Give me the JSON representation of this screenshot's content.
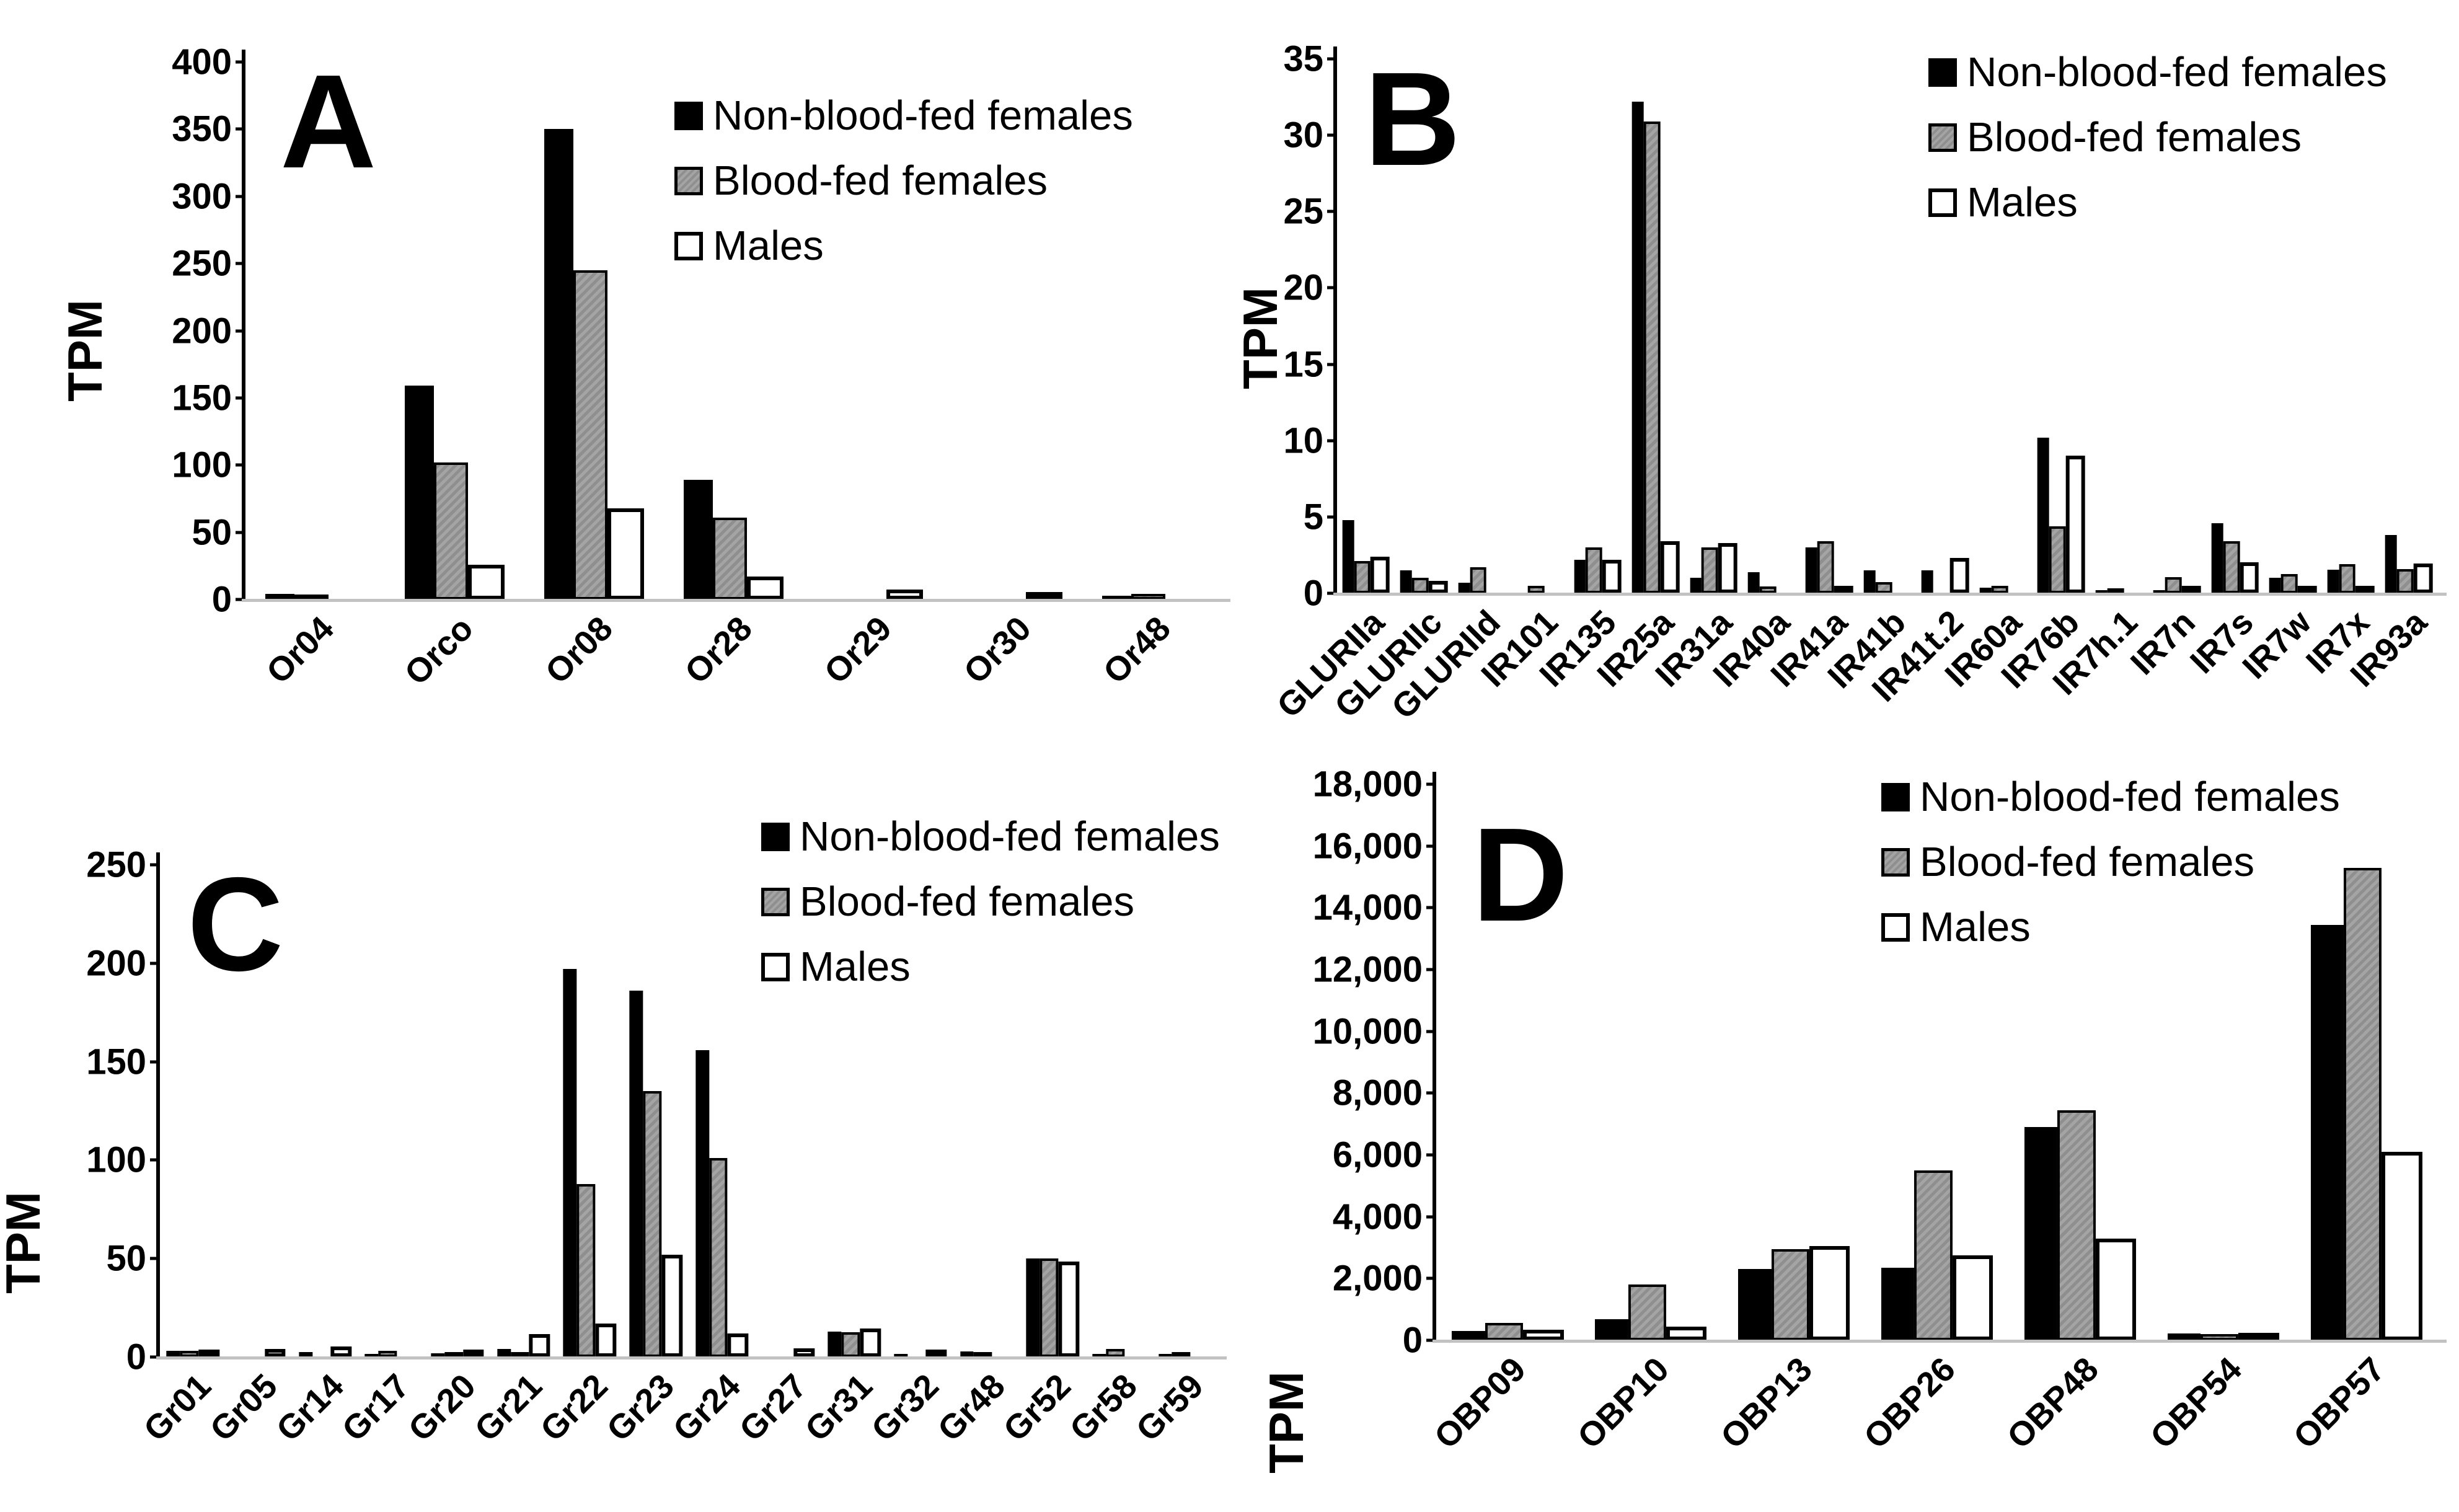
{
  "figure": {
    "y_axis_label": "TPM",
    "colors": {
      "non_blood_fed": "#000000",
      "blood_fed": "#9a9a9a",
      "males": "#ffffff",
      "baseline": "#c2c2c2"
    },
    "legend_labels": [
      "Non-blood-fed females",
      "Blood-fed females",
      "Males"
    ]
  },
  "chart_data": [
    {
      "type": "bar",
      "panel": "A",
      "ylabel": "TPM",
      "ylim": [
        0,
        400
      ],
      "ytick_labels": [
        "0",
        "50",
        "100",
        "150",
        "200",
        "250",
        "300",
        "350",
        "400"
      ],
      "ytick_values": [
        0,
        50,
        100,
        150,
        200,
        250,
        300,
        350,
        400
      ],
      "grid": false,
      "legend_position": "top-right",
      "categories": [
        "Or04",
        "Orco",
        "Or08",
        "Or28",
        "Or29",
        "Or30",
        "Or48"
      ],
      "series": [
        {
          "name": "Non-blood-fed females",
          "values": [
            4,
            159,
            350,
            89,
            0,
            0,
            3
          ]
        },
        {
          "name": "Blood-fed females",
          "values": [
            1.5,
            102,
            245,
            61,
            0,
            0,
            4
          ]
        },
        {
          "name": "Males",
          "values": [
            0,
            26,
            68,
            17,
            7.5,
            5.5,
            0
          ]
        }
      ]
    },
    {
      "type": "bar",
      "panel": "B",
      "ylabel": "TPM",
      "ylim": [
        0,
        35
      ],
      "ytick_labels": [
        "0",
        "5",
        "10",
        "15",
        "20",
        "25",
        "30",
        "35"
      ],
      "ytick_values": [
        0,
        5,
        10,
        15,
        20,
        25,
        30,
        35
      ],
      "grid": false,
      "legend_position": "top-right",
      "categories": [
        "GLURIIa",
        "GLURIIc",
        "GLURIId",
        "IR101",
        "IR135",
        "IR25a",
        "IR31a",
        "IR40a",
        "IR41a",
        "IR41b",
        "IR41t.2",
        "IR60a",
        "IR76b",
        "IR7h.1",
        "IR7n",
        "IR7s",
        "IR7w",
        "IR7x",
        "IR93a"
      ],
      "series": [
        {
          "name": "Non-blood-fed females",
          "values": [
            4.8,
            1.5,
            0.7,
            0,
            2.2,
            32.2,
            1.0,
            1.4,
            3.0,
            1.5,
            1.5,
            0.35,
            10.2,
            0.2,
            0.2,
            4.6,
            1.0,
            1.55,
            3.8
          ]
        },
        {
          "name": "Blood-fed females",
          "values": [
            2.1,
            1.0,
            1.7,
            0.5,
            3.0,
            30.9,
            3.0,
            0.45,
            3.4,
            0.75,
            0,
            0.5,
            4.4,
            0.3,
            1.05,
            3.4,
            1.25,
            1.9,
            1.6
          ]
        },
        {
          "name": "Males",
          "values": [
            2.4,
            0.8,
            0,
            0,
            2.2,
            3.4,
            3.3,
            0,
            0.1,
            0,
            2.3,
            0,
            9.0,
            0,
            0.1,
            2.05,
            0.5,
            0.2,
            1.95
          ]
        }
      ]
    },
    {
      "type": "bar",
      "panel": "C",
      "ylabel": "TPM",
      "ylim": [
        0,
        250
      ],
      "ytick_labels": [
        "0",
        "50",
        "100",
        "150",
        "200",
        "250"
      ],
      "ytick_values": [
        0,
        50,
        100,
        150,
        200,
        250
      ],
      "grid": false,
      "legend_position": "top-right",
      "categories": [
        "Gr01",
        "Gr05",
        "Gr14",
        "Gr17",
        "Gr20",
        "Gr21",
        "Gr22",
        "Gr23",
        "Gr24",
        "Gr27",
        "Gr31",
        "Gr32",
        "Gr48",
        "Gr52",
        "Gr58",
        "Gr59"
      ],
      "series": [
        {
          "name": "Non-blood-fed females",
          "values": [
            3,
            0,
            2.5,
            1.6,
            2,
            4,
            197,
            186,
            156,
            0,
            13,
            0.4,
            2.8,
            50,
            0.5,
            0.2
          ]
        },
        {
          "name": "Blood-fed females",
          "values": [
            3.2,
            0,
            0,
            3.2,
            2.4,
            2,
            88,
            135,
            101,
            0,
            12.5,
            0,
            1.2,
            50,
            4.2,
            1.1
          ]
        },
        {
          "name": "Males",
          "values": [
            0.8,
            4,
            5.5,
            0,
            0.9,
            11.5,
            17,
            52,
            12,
            4.5,
            14.5,
            3.8,
            0,
            48.5,
            0,
            0
          ]
        }
      ]
    },
    {
      "type": "bar",
      "panel": "D",
      "ylabel": "TPM",
      "ylim": [
        0,
        18000
      ],
      "ytick_labels": [
        "0",
        "2,000",
        "4,000",
        "6,000",
        "8,000",
        "10,000",
        "12,000",
        "14,000",
        "16,000",
        "18,000"
      ],
      "ytick_values": [
        0,
        2000,
        4000,
        6000,
        8000,
        10000,
        12000,
        14000,
        16000,
        18000
      ],
      "grid": false,
      "legend_position": "top-right",
      "categories": [
        "OBP09",
        "OBP10",
        "OBP13",
        "OBP26",
        "OBP48",
        "OBP54",
        "OBP57"
      ],
      "series": [
        {
          "name": "Non-blood-fed females",
          "values": [
            310,
            690,
            2300,
            2350,
            6900,
            220,
            13450
          ]
        },
        {
          "name": "Blood-fed females",
          "values": [
            560,
            1800,
            2950,
            5500,
            7450,
            210,
            15300
          ]
        },
        {
          "name": "Males",
          "values": [
            350,
            450,
            3050,
            2750,
            3300,
            170,
            6100
          ]
        }
      ]
    }
  ]
}
